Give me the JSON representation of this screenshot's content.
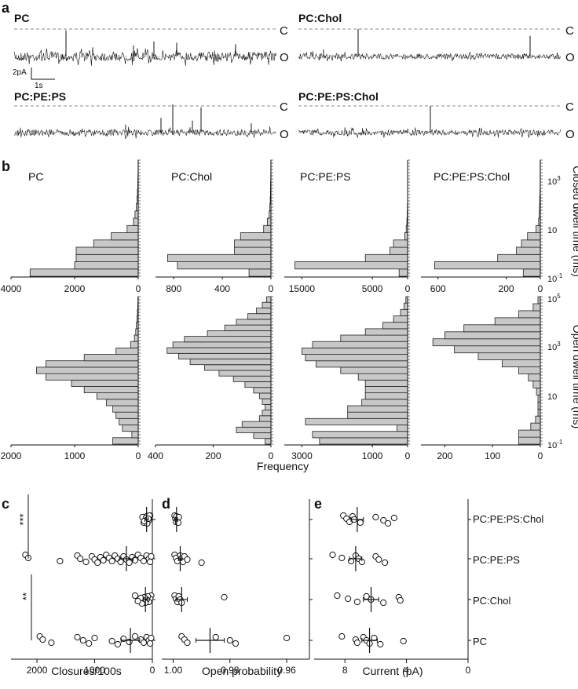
{
  "panels": {
    "a": {
      "letter": "a",
      "labels": [
        "PC",
        "PC:Chol",
        "PC:PE:PS",
        "PC:PE:PS:Chol"
      ],
      "level_closed": "C",
      "level_open": "O",
      "scale_current": "2pA",
      "scale_time": "1s"
    },
    "b": {
      "letter": "b",
      "xlabel": "Frequency",
      "right_label_closed": "Closed dwell time (ms)",
      "right_label_open": "Open dwell time (ms)",
      "closed_axis_ticks": [
        {
          "base": "10",
          "exp": "-1"
        },
        {
          "base": "10",
          "exp": ""
        },
        {
          "base": "10",
          "exp": "3"
        }
      ],
      "open_axis_ticks": [
        {
          "base": "10",
          "exp": "-1"
        },
        {
          "base": "10",
          "exp": ""
        },
        {
          "base": "10",
          "exp": "3"
        },
        {
          "base": "10",
          "exp": "5"
        }
      ]
    },
    "c": {
      "letter": "c",
      "xlabel": "Closures/100s",
      "sig_top": "***",
      "sig_bottom": "**"
    },
    "d": {
      "letter": "d",
      "xlabel": "Open probability"
    },
    "e": {
      "letter": "e",
      "xlabel": "Current (pA)"
    }
  },
  "chart_data": [
    {
      "panel": "a",
      "type": "line",
      "description_kind": "single-channel current traces",
      "series": [
        {
          "name": "PC"
        },
        {
          "name": "PC:Chol"
        },
        {
          "name": "PC:PE:PS"
        },
        {
          "name": "PC:PE:PS:Chol"
        }
      ]
    },
    {
      "panel": "b",
      "type": "bar",
      "orientation": "horizontal",
      "histograms": [
        {
          "name": "PC",
          "kind": "closed",
          "xlim": [
            4000,
            0
          ],
          "x_ticks": [
            "4000",
            "2000",
            "0"
          ],
          "values": [
            3400,
            2000,
            1950,
            1950,
            1400,
            850,
            350,
            150,
            100,
            60,
            40,
            25,
            15,
            10,
            6,
            4
          ]
        },
        {
          "name": "PC:Chol",
          "kind": "closed",
          "xlim": [
            950,
            0
          ],
          "x_ticks": [
            "800",
            "400",
            "0"
          ],
          "values": [
            180,
            770,
            850,
            300,
            300,
            250,
            60,
            30,
            15,
            10,
            6,
            4,
            3,
            2,
            1,
            1
          ]
        },
        {
          "name": "PC:PE:PS",
          "kind": "closed",
          "xlim": [
            17500,
            0
          ],
          "x_ticks": [
            "15000",
            "5000",
            "0"
          ],
          "values": [
            1200,
            16000,
            6000,
            2500,
            2000,
            400,
            200,
            100,
            60,
            30,
            15,
            8,
            4,
            2,
            1,
            1
          ]
        },
        {
          "name": "PC:PE:PS:Chol",
          "kind": "closed",
          "xlim": [
            700,
            0
          ],
          "x_ticks": [
            "600",
            "200",
            "0"
          ],
          "values": [
            100,
            620,
            250,
            140,
            110,
            75,
            25,
            10,
            6,
            4,
            3,
            2,
            1,
            1,
            1,
            1
          ]
        },
        {
          "name": "PC",
          "kind": "open",
          "xlim": [
            2000,
            0
          ],
          "x_ticks": [
            "2000",
            "1000",
            "0"
          ],
          "values": [
            400,
            100,
            250,
            300,
            350,
            400,
            500,
            650,
            850,
            1050,
            1450,
            1600,
            1450,
            850,
            350,
            120,
            60,
            40,
            30,
            20,
            12,
            8,
            5
          ]
        },
        {
          "name": "PC:Chol",
          "kind": "open",
          "xlim": [
            400,
            0
          ],
          "x_ticks": [
            "400",
            "200",
            "0"
          ],
          "values": [
            20,
            60,
            120,
            100,
            40,
            30,
            20,
            30,
            40,
            60,
            90,
            130,
            180,
            230,
            280,
            320,
            360,
            340,
            300,
            220,
            160,
            120,
            80,
            50,
            30,
            15
          ]
        },
        {
          "name": "PC:PE:PS",
          "kind": "open",
          "xlim": [
            3500,
            0
          ],
          "x_ticks": [
            "3000",
            "1000",
            "0"
          ],
          "values": [
            2500,
            2700,
            300,
            2900,
            1700,
            1700,
            1300,
            1200,
            1200,
            1200,
            1400,
            1900,
            2600,
            2900,
            3000,
            2700,
            1900,
            1200,
            700,
            400,
            200,
            100,
            50
          ]
        },
        {
          "name": "PC:PE:PS:Chol",
          "kind": "open",
          "xlim": [
            250,
            0
          ],
          "x_ticks": [
            "200",
            "100",
            "0"
          ],
          "values": [
            45,
            45,
            20,
            10,
            5,
            5,
            5,
            8,
            15,
            25,
            45,
            80,
            130,
            180,
            225,
            200,
            160,
            95,
            45,
            15,
            5
          ]
        }
      ]
    },
    {
      "panel": "c",
      "type": "scatter",
      "categories": [
        "PC:PE:PS:Chol",
        "PC:PE:PS",
        "PC:Chol",
        "PC"
      ],
      "xlim": [
        2450,
        0
      ],
      "x_ticks": [
        "2000",
        "1000",
        "0"
      ],
      "points": [
        [
          40,
          60,
          80,
          100,
          120,
          150,
          170,
          60,
          90,
          110,
          140,
          50,
          70
        ],
        [
          2200,
          2150,
          1600,
          1300,
          1250,
          1150,
          1050,
          1000,
          950,
          900,
          850,
          800,
          750,
          700,
          650,
          600,
          550,
          500,
          450,
          400,
          350,
          300,
          250,
          200,
          150,
          100,
          60,
          40,
          20
        ],
        [
          20,
          40,
          60,
          80,
          100,
          120,
          140,
          160,
          180,
          200,
          250,
          300
        ],
        [
          1950,
          1900,
          1750,
          1300,
          1200,
          1100,
          1000,
          700,
          600,
          500,
          400,
          300,
          200,
          150,
          100,
          60,
          40,
          20
        ]
      ],
      "mean": [
        100,
        450,
        120,
        380
      ],
      "err": [
        30,
        120,
        40,
        160
      ]
    },
    {
      "panel": "d",
      "type": "scatter",
      "categories": [
        "PC:PE:PS:Chol",
        "PC:PE:PS",
        "PC:Chol",
        "PC"
      ],
      "xlim": [
        1.004,
        0.952
      ],
      "x_ticks": [
        "1.00",
        "0.98",
        "0.96"
      ],
      "points": [
        [
          0.9995,
          0.9992,
          0.999,
          0.9988,
          0.9985,
          0.9982,
          0.998
        ],
        [
          0.9995,
          0.999,
          0.9985,
          0.9975,
          0.997,
          0.9965,
          0.996,
          0.995,
          0.99
        ],
        [
          0.9995,
          0.999,
          0.9985,
          0.998,
          0.9975,
          0.997,
          0.982
        ],
        [
          0.997,
          0.996,
          0.995,
          0.985,
          0.98,
          0.978,
          0.96
        ]
      ],
      "mean": [
        0.9988,
        0.9975,
        0.997,
        0.987
      ],
      "err": [
        0.0004,
        0.0006,
        0.002,
        0.005
      ]
    },
    {
      "panel": "e",
      "type": "scatter",
      "categories": [
        "PC:PE:PS:Chol",
        "PC:PE:PS",
        "PC:Chol",
        "PC"
      ],
      "xlim": [
        10,
        0
      ],
      "x_ticks": [
        "8",
        "4",
        "0"
      ],
      "points": [
        [
          8.1,
          7.9,
          7.7,
          7.5,
          7.4,
          7.0,
          6.0,
          5.5,
          5.2,
          4.8
        ],
        [
          8.8,
          8.2,
          7.6,
          7.3,
          7.1,
          6.9,
          6.0,
          5.8,
          5.4
        ],
        [
          8.5,
          7.8,
          7.2,
          6.6,
          6.3,
          5.5,
          4.5,
          4.4
        ],
        [
          8.2,
          7.3,
          7.2,
          6.8,
          6.6,
          6.4,
          6.1,
          4.2,
          5.7
        ]
      ],
      "mean": [
        7.2,
        7.3,
        6.3,
        6.4
      ],
      "err": [
        0.4,
        0.4,
        0.5,
        0.5
      ]
    }
  ],
  "conditions_labels": [
    "PC:PE:PS:Chol",
    "PC:PE:PS",
    "PC:Chol",
    "PC"
  ]
}
